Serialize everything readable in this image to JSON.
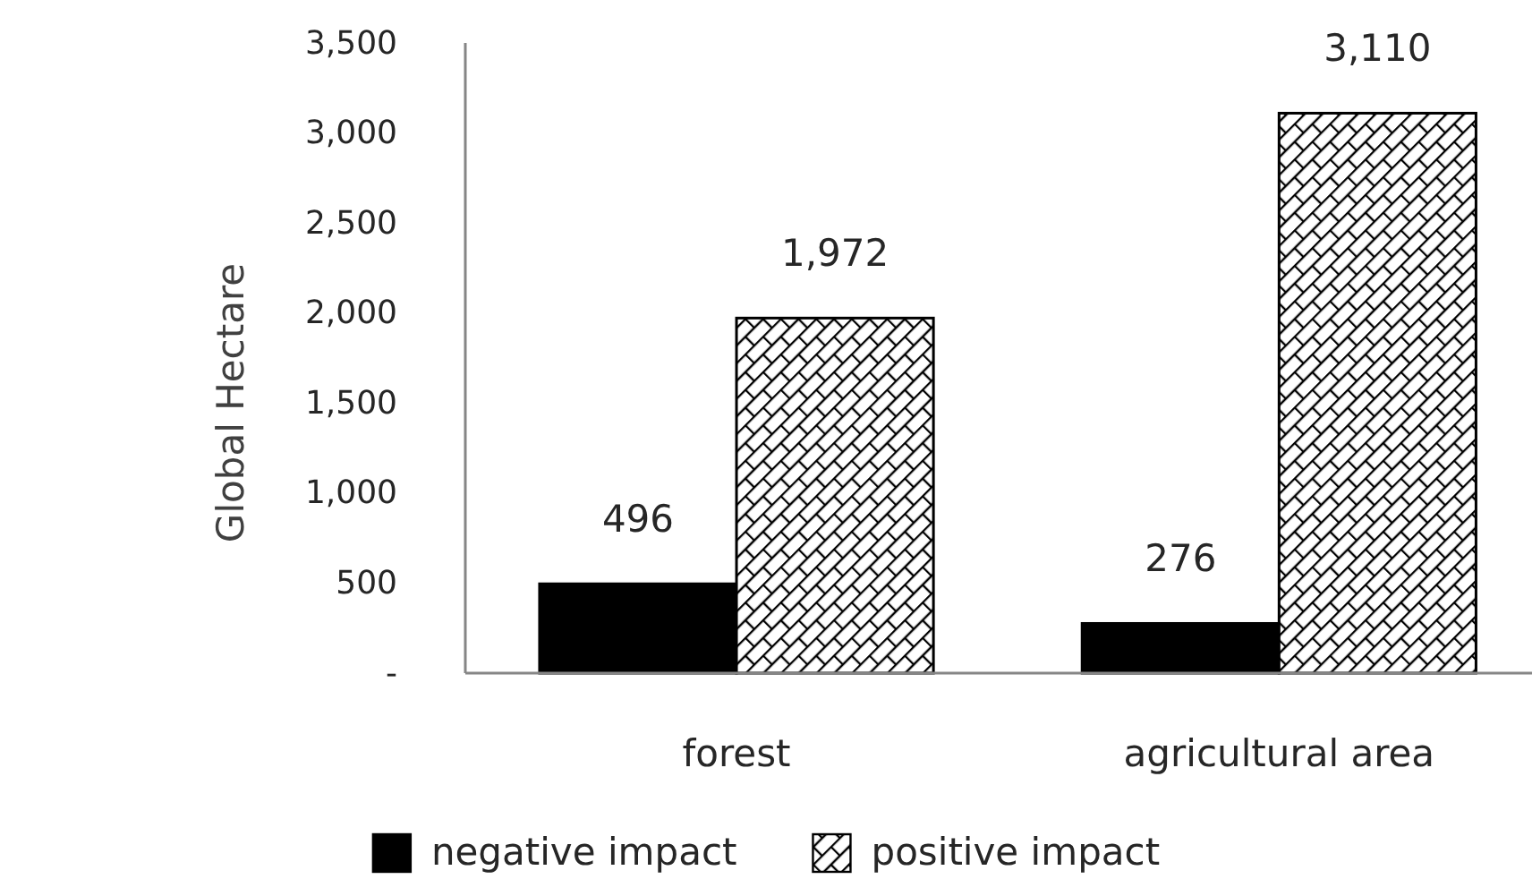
{
  "chart_data": {
    "type": "bar",
    "ylabel": "Global Hectare",
    "categories": [
      "forest",
      "agricultural area"
    ],
    "series": [
      {
        "name": "negative impact",
        "color": "#000000",
        "values": [
          496,
          276
        ],
        "value_labels": [
          "496",
          "276"
        ]
      },
      {
        "name": "positive impact",
        "color": "#000000",
        "values": [
          1972,
          3110
        ],
        "value_labels": [
          "1,972",
          "3,110"
        ]
      }
    ],
    "ylim": [
      0,
      3500
    ],
    "yticks": [
      {
        "value": 0,
        "label": "-"
      },
      500,
      {
        "value": 1000,
        "label": "1,000"
      },
      {
        "value": 1500,
        "label": "1,500"
      },
      {
        "value": 2000,
        "label": "2,000"
      },
      {
        "value": 2500,
        "label": "2,500"
      },
      {
        "value": 3000,
        "label": "3,000"
      },
      {
        "value": 3500,
        "label": "3,500"
      }
    ],
    "grid": false,
    "legend": "bottom"
  }
}
